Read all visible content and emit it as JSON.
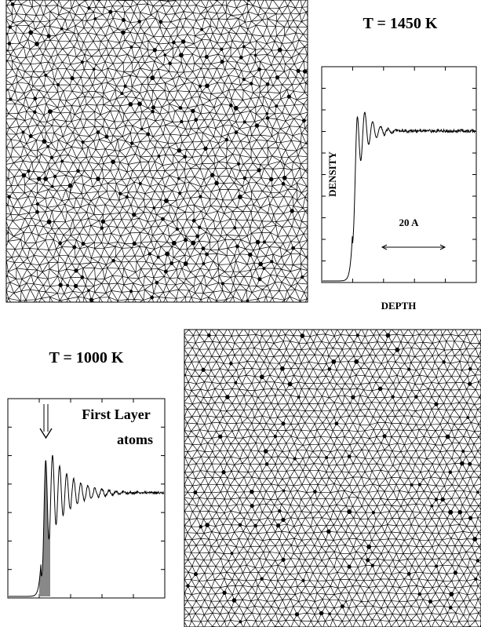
{
  "top_panel": {
    "title": "T = 1450 K",
    "y_label": "DENSITY",
    "scale_label": "20 A",
    "x_label": "DEPTH"
  },
  "bottom_panel": {
    "title": "T = 1000 K",
    "annotation": [
      "First Layer",
      "atoms"
    ]
  }
}
